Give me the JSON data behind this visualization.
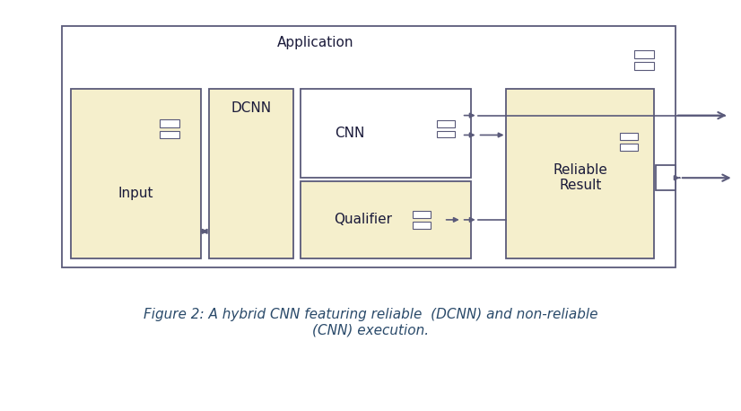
{
  "bg_color": "#ffffff",
  "cream": "#f5efcc",
  "white": "#ffffff",
  "edge": "#5a5a7a",
  "text_dark": "#1a1a3a",
  "caption_color": "#2a4a6a",
  "app_label": "Application",
  "input_label": "Input",
  "dcnn_label": "DCNN",
  "cnn_label": "CNN",
  "qualifier_label": "Qualifier",
  "result_label": "Reliable\nResult",
  "caption": "Figure 2: A hybrid CNN featuring reliable  (DCNN) and non-reliable\n(CNN) execution."
}
